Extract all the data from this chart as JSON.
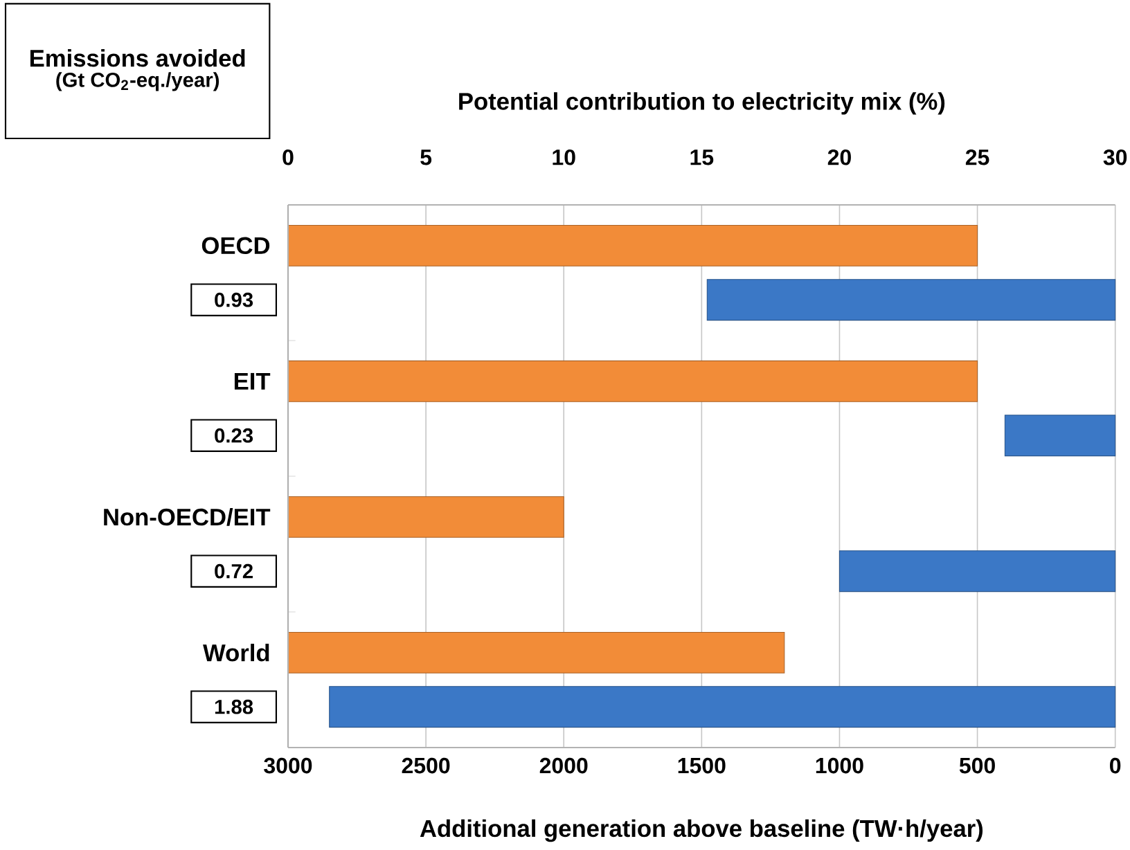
{
  "chart_data": {
    "type": "bar",
    "orientation": "horizontal",
    "x2label": "Potential contribution to electricity mix (%)",
    "xlabel": "Additional generation above baseline (TW·h/year)",
    "categories": [
      "OECD",
      "EIT",
      "Non-OECD/EIT",
      "World"
    ],
    "series": [
      {
        "color": "#f28c38",
        "values": [
          25,
          25,
          10,
          18
        ],
        "axis": "x2"
      },
      {
        "color": "#3b78c6",
        "values": [
          1480,
          400,
          1000,
          2850
        ]
      }
    ],
    "xlim": [
      3000,
      0
    ],
    "xticks": [
      3000,
      2500,
      2000,
      1500,
      1000,
      500,
      0
    ],
    "x2lim": [
      0,
      30
    ],
    "x2ticks": [
      0,
      5,
      10,
      15,
      20,
      25,
      30
    ],
    "grid": "x",
    "annotations": [
      "Emissions avoided",
      "(Gt CO$_{2}$-eq./year)",
      "0.93",
      "0.23",
      "0.72",
      "1.88"
    ]
  }
}
